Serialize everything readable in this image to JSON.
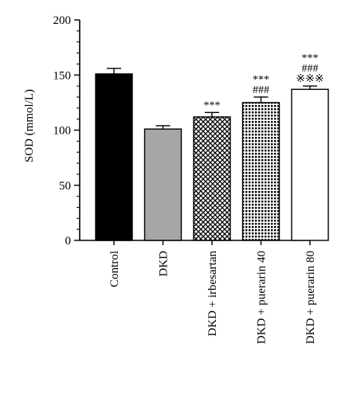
{
  "chart_data": {
    "type": "bar",
    "title": "",
    "xlabel": "",
    "ylabel": "SOD (mmol/L)",
    "ylim": [
      0,
      200
    ],
    "yticks": [
      0,
      50,
      100,
      150,
      200
    ],
    "grid": false,
    "categories": [
      "Control",
      "DKD",
      "DKD + irbesartan",
      "DKD + puerarin 40",
      "DKD + puerarin 80"
    ],
    "values": [
      151,
      101,
      112,
      125,
      137
    ],
    "errors": [
      5,
      3,
      4,
      5,
      3
    ],
    "fills": [
      "solid-black",
      "solid-gray",
      "crosshatch",
      "grid-hatch",
      "white"
    ],
    "colors": {
      "black": "#000000",
      "gray": "#a6a6a6",
      "white": "#ffffff"
    },
    "annotations": [
      [],
      [],
      [
        "***"
      ],
      [
        "***",
        "###"
      ],
      [
        "***",
        "###",
        "※※※"
      ]
    ]
  }
}
